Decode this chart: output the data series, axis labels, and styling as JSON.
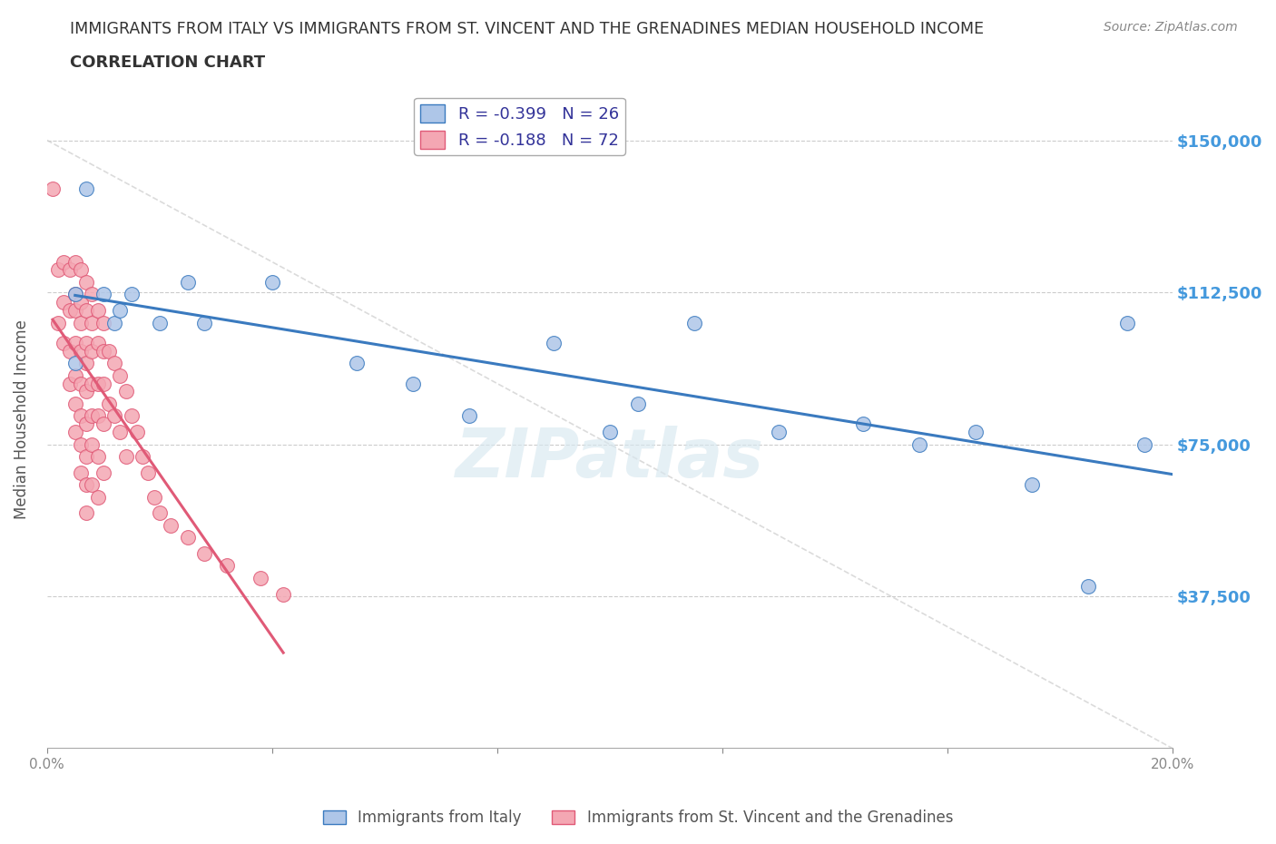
{
  "title_line1": "IMMIGRANTS FROM ITALY VS IMMIGRANTS FROM ST. VINCENT AND THE GRENADINES MEDIAN HOUSEHOLD INCOME",
  "title_line2": "CORRELATION CHART",
  "source": "Source: ZipAtlas.com",
  "ylabel": "Median Household Income",
  "xlim": [
    0.0,
    0.2
  ],
  "ylim": [
    0,
    162500
  ],
  "yticks": [
    0,
    37500,
    75000,
    112500,
    150000
  ],
  "ytick_labels": [
    "",
    "$37,500",
    "$75,000",
    "$112,500",
    "$150,000"
  ],
  "xticks": [
    0.0,
    0.04,
    0.08,
    0.12,
    0.16,
    0.2
  ],
  "xtick_labels": [
    "0.0%",
    "",
    "",
    "",
    "",
    "20.0%"
  ],
  "italy_R": -0.399,
  "italy_N": 26,
  "svg_R": -0.188,
  "svg_N": 72,
  "italy_color": "#aec6e8",
  "italy_line_color": "#3a7abf",
  "svg_color": "#f4a7b3",
  "svg_line_color": "#e05a77",
  "diagonal_line_color": "#cccccc",
  "grid_color": "#cccccc",
  "title_color": "#333333",
  "axis_label_color": "#555555",
  "tick_label_color": "#4499dd",
  "legend_text_color": "#333399",
  "italy_x": [
    0.005,
    0.005,
    0.007,
    0.01,
    0.012,
    0.013,
    0.015,
    0.02,
    0.025,
    0.028,
    0.04,
    0.055,
    0.065,
    0.075,
    0.09,
    0.1,
    0.105,
    0.115,
    0.13,
    0.145,
    0.155,
    0.165,
    0.175,
    0.185,
    0.192,
    0.195
  ],
  "italy_y": [
    112000,
    95000,
    138000,
    112000,
    105000,
    108000,
    112000,
    105000,
    115000,
    105000,
    115000,
    95000,
    90000,
    82000,
    100000,
    78000,
    85000,
    105000,
    78000,
    80000,
    75000,
    78000,
    65000,
    40000,
    105000,
    75000
  ],
  "svg_x": [
    0.001,
    0.002,
    0.002,
    0.003,
    0.003,
    0.003,
    0.004,
    0.004,
    0.004,
    0.004,
    0.005,
    0.005,
    0.005,
    0.005,
    0.005,
    0.005,
    0.005,
    0.006,
    0.006,
    0.006,
    0.006,
    0.006,
    0.006,
    0.006,
    0.006,
    0.007,
    0.007,
    0.007,
    0.007,
    0.007,
    0.007,
    0.007,
    0.007,
    0.007,
    0.008,
    0.008,
    0.008,
    0.008,
    0.008,
    0.008,
    0.008,
    0.009,
    0.009,
    0.009,
    0.009,
    0.009,
    0.009,
    0.01,
    0.01,
    0.01,
    0.01,
    0.01,
    0.011,
    0.011,
    0.012,
    0.012,
    0.013,
    0.013,
    0.014,
    0.014,
    0.015,
    0.016,
    0.017,
    0.018,
    0.019,
    0.02,
    0.022,
    0.025,
    0.028,
    0.032,
    0.038,
    0.042
  ],
  "svg_y": [
    138000,
    118000,
    105000,
    120000,
    110000,
    100000,
    118000,
    108000,
    98000,
    90000,
    120000,
    112000,
    108000,
    100000,
    92000,
    85000,
    78000,
    118000,
    110000,
    105000,
    98000,
    90000,
    82000,
    75000,
    68000,
    115000,
    108000,
    100000,
    95000,
    88000,
    80000,
    72000,
    65000,
    58000,
    112000,
    105000,
    98000,
    90000,
    82000,
    75000,
    65000,
    108000,
    100000,
    90000,
    82000,
    72000,
    62000,
    105000,
    98000,
    90000,
    80000,
    68000,
    98000,
    85000,
    95000,
    82000,
    92000,
    78000,
    88000,
    72000,
    82000,
    78000,
    72000,
    68000,
    62000,
    58000,
    55000,
    52000,
    48000,
    45000,
    42000,
    38000
  ]
}
